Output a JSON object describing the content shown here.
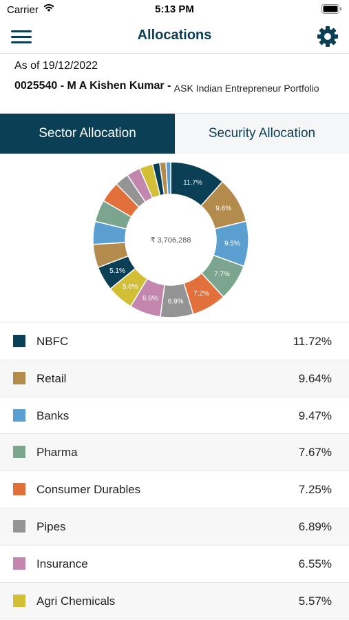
{
  "status_bar": {
    "carrier": "Carrier",
    "time": "5:13 PM"
  },
  "nav": {
    "title": "Allocations",
    "menu_icon": "hamburger-icon",
    "settings_icon": "gear-icon"
  },
  "info": {
    "as_of": "As of 19/12/2022",
    "account": "0025540 - M A Kishen Kumar - ",
    "portfolio": "ASK Indian Entrepreneur Portfolio"
  },
  "tabs": [
    {
      "label": "Sector Allocation",
      "active": true
    },
    {
      "label": "Security Allocation",
      "active": false
    }
  ],
  "colors": {
    "primary": "#0b3f55",
    "segment_label": "#ffffff"
  },
  "chart_data": {
    "type": "pie",
    "donut": true,
    "center_label": "₹ 3,706,288",
    "segments": [
      {
        "name": "NBFC",
        "value": 11.72,
        "label": "11.7%",
        "color": "#0b3f55"
      },
      {
        "name": "Retail",
        "value": 9.64,
        "label": "9.6%",
        "color": "#b38b4d"
      },
      {
        "name": "Banks",
        "value": 9.47,
        "label": "9.5%",
        "color": "#5b9fd1"
      },
      {
        "name": "Pharma",
        "value": 7.67,
        "label": "7.7%",
        "color": "#7ca58f"
      },
      {
        "name": "Consumer Durables",
        "value": 7.25,
        "label": "7.2%",
        "color": "#e2703a"
      },
      {
        "name": "Pipes",
        "value": 6.89,
        "label": "6.9%",
        "color": "#949494"
      },
      {
        "name": "Insurance",
        "value": 6.55,
        "label": "6.6%",
        "color": "#c387ad"
      },
      {
        "name": "Agri Chemicals",
        "value": 5.57,
        "label": "5.6%",
        "color": "#d2bf36"
      },
      {
        "name": "",
        "value": 5.1,
        "label": "5.1%",
        "color": "#0b3f55"
      },
      {
        "name": "",
        "value": 4.9,
        "label": "",
        "color": "#b38b4d"
      },
      {
        "name": "",
        "value": 4.8,
        "label": "",
        "color": "#5b9fd1"
      },
      {
        "name": "",
        "value": 4.6,
        "label": "",
        "color": "#7ca58f"
      },
      {
        "name": "",
        "value": 4.4,
        "label": "",
        "color": "#e2703a"
      },
      {
        "name": "",
        "value": 2.9,
        "label": "",
        "color": "#949494"
      },
      {
        "name": "",
        "value": 2.9,
        "label": "",
        "color": "#c387ad"
      },
      {
        "name": "",
        "value": 2.8,
        "label": "",
        "color": "#d2bf36"
      },
      {
        "name": "",
        "value": 1.5,
        "label": "",
        "color": "#0b3f55"
      },
      {
        "name": "",
        "value": 1.3,
        "label": "",
        "color": "#b38b4d"
      },
      {
        "name": "",
        "value": 1.0,
        "label": "",
        "color": "#5b9fd1"
      }
    ]
  },
  "legend": [
    {
      "name": "NBFC",
      "value": "11.72%",
      "color": "#0b3f55"
    },
    {
      "name": "Retail",
      "value": "9.64%",
      "color": "#b38b4d"
    },
    {
      "name": "Banks",
      "value": "9.47%",
      "color": "#5b9fd1"
    },
    {
      "name": "Pharma",
      "value": "7.67%",
      "color": "#7ca58f"
    },
    {
      "name": "Consumer Durables",
      "value": "7.25%",
      "color": "#e2703a"
    },
    {
      "name": "Pipes",
      "value": "6.89%",
      "color": "#949494"
    },
    {
      "name": "Insurance",
      "value": "6.55%",
      "color": "#c387ad"
    },
    {
      "name": "Agri Chemicals",
      "value": "5.57%",
      "color": "#d2bf36"
    }
  ]
}
